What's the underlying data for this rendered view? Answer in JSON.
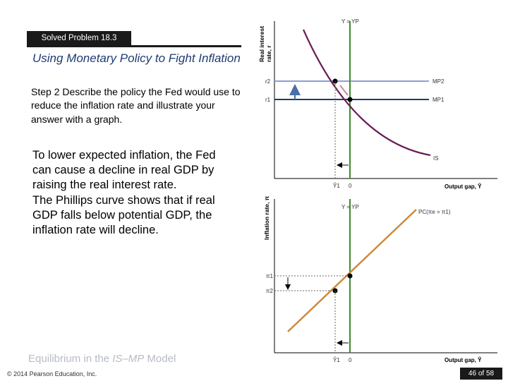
{
  "header": {
    "banner": "Solved Problem 18.3",
    "title": "Using Monetary Policy to Fight Inflation"
  },
  "step": "Step 2  Describe the policy the Fed would use to reduce the inflation rate and illustrate your answer with a graph.",
  "body": {
    "para1": "To lower expected inflation, the Fed can cause a decline in real GDP by raising the real interest rate.",
    "para2": "The Phillips curve shows that if real GDP falls below potential GDP, the inflation rate will decline."
  },
  "footer": {
    "title_prefix": "Equilibrium in the ",
    "title_italic": "IS–MP",
    "title_suffix": " Model",
    "copyright": "© 2014 Pearson Education, Inc.",
    "page": "46 of 58"
  },
  "top_graph": {
    "ylabel_line1": "Real interest",
    "ylabel_line2": "rate, r",
    "vline_label": "Y = YP",
    "r2_label": "r2",
    "r1_label": "r1",
    "mp2_label": "MP2",
    "mp1_label": "MP1",
    "is_label": "IS",
    "xlabel": "Output gap, Ỹ",
    "ytilde_label": "Ỹ1",
    "zero_label": "0"
  },
  "bottom_graph": {
    "ylabel": "Inflation rate, π",
    "vline_label": "Y = YP",
    "pc_label": "PC(πe = π1)",
    "pi1_label": "π1",
    "pi2_label": "π2",
    "xlabel": "Output gap, Ỹ",
    "ytilde_label": "Ỹ1",
    "zero_label": "0"
  },
  "colors": {
    "is_curve": "#6b1d55",
    "mp_line": "#1f3b6e",
    "mp2_line": "#8e9fd4",
    "vertical_line": "#3f8a2a",
    "pc_line": "#cc8a3c",
    "arrow": "#4a6fa5"
  }
}
